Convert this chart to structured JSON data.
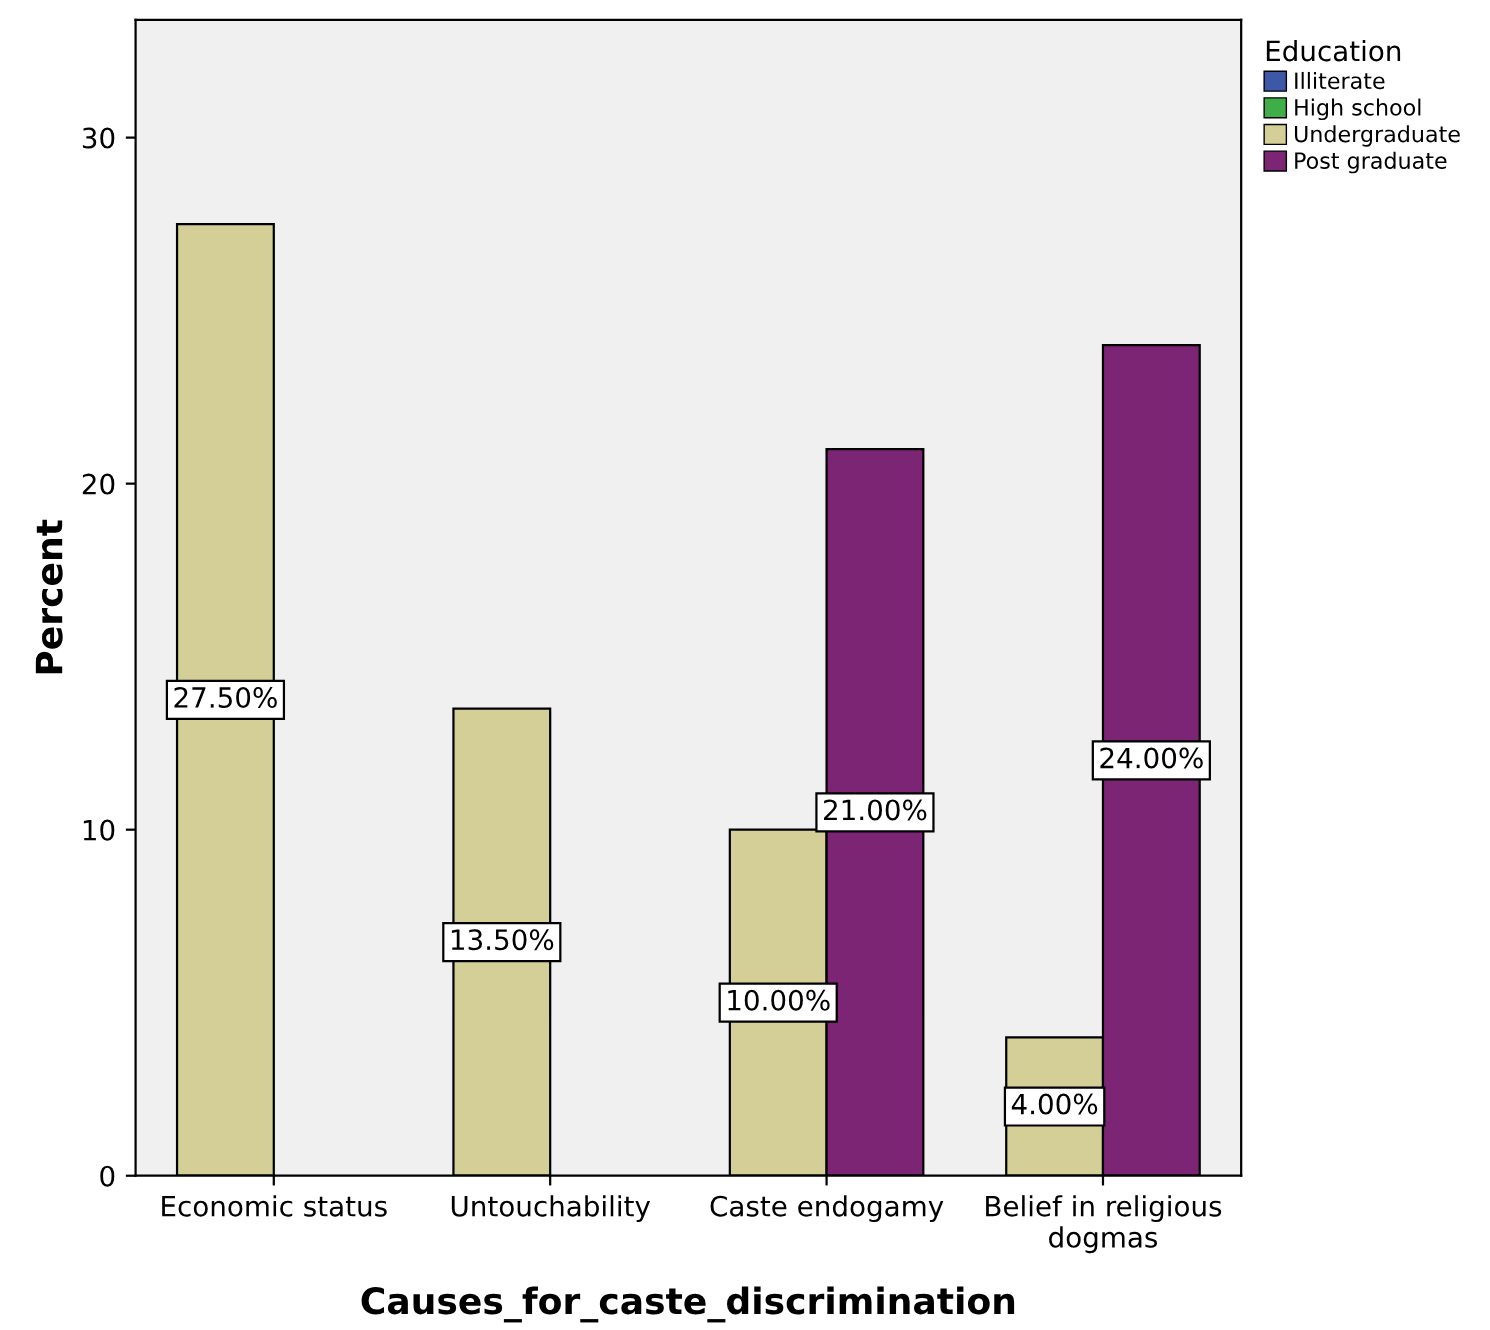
{
  "chart_data": {
    "type": "bar",
    "xlabel": "Causes_for_caste_discrimination",
    "ylabel": "Percent",
    "legend_title": "Education",
    "legend": "top right",
    "categories": [
      "Economic status",
      "Untouchability",
      "Caste endogamy",
      "Belief in religious\ndogmas"
    ],
    "series": [
      {
        "name": "Illiterate",
        "color": "#3e58a8",
        "values": [
          null,
          null,
          null,
          null
        ]
      },
      {
        "name": "High school",
        "color": "#3fae49",
        "values": [
          null,
          null,
          null,
          null
        ]
      },
      {
        "name": "Undergraduate",
        "color": "#d4cf96",
        "values": [
          27.5,
          13.5,
          10,
          4
        ],
        "value_labels": [
          "27.50%",
          "13.50%",
          "10.00%",
          "4.00%"
        ]
      },
      {
        "name": "Post graduate",
        "color": "#7b2574",
        "values": [
          null,
          null,
          21,
          24
        ],
        "value_labels": [
          null,
          null,
          "21.00%",
          "24.00%"
        ]
      }
    ],
    "ylim": [
      0,
      33.4
    ],
    "yticks": [
      0,
      10,
      20,
      30
    ],
    "grid": false
  }
}
